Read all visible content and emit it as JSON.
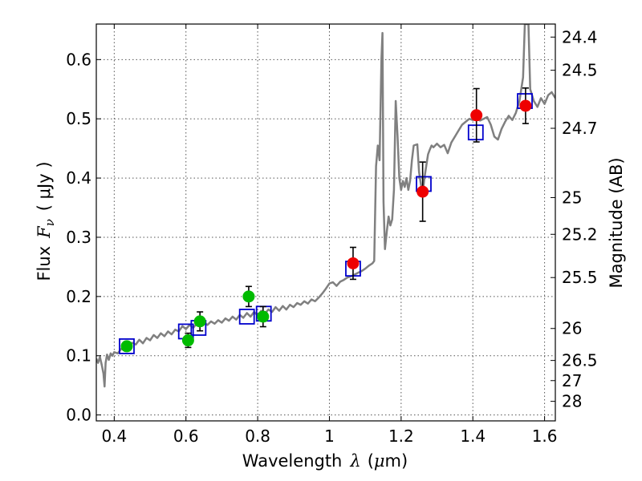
{
  "chart_data": {
    "type": "scatter",
    "title": "",
    "xlabel": {
      "prefix": "Wavelength",
      "symbol": "λ",
      "units_open": "(",
      "units_mu": "μ",
      "units_rest": "m)"
    },
    "ylabel": {
      "prefix": "Flux",
      "symbol": "F",
      "subscript": "ν",
      "units": "( μJy )"
    },
    "y2label": "Magnitude (AB)",
    "xlim": [
      0.35,
      1.63
    ],
    "ylim": [
      -0.01,
      0.66
    ],
    "grid": true,
    "x_ticks": [
      0.4,
      0.6,
      0.8,
      1.0,
      1.2,
      1.4,
      1.6
    ],
    "x_tick_labels": [
      "0.4",
      "0.6",
      "0.8",
      "1",
      "1.2",
      "1.4",
      "1.6"
    ],
    "y_ticks": [
      0.0,
      0.1,
      0.2,
      0.3,
      0.4,
      0.5,
      0.6
    ],
    "y_tick_labels": [
      "0.0",
      "0.1",
      "0.2",
      "0.3",
      "0.4",
      "0.5",
      "0.6"
    ],
    "y2_ticks": [
      {
        "label": "24.4",
        "flux": 0.638
      },
      {
        "label": "24.5",
        "flux": 0.582
      },
      {
        "label": "24.7",
        "flux": 0.484
      },
      {
        "label": "25",
        "flux": 0.367
      },
      {
        "label": "25.2",
        "flux": 0.305
      },
      {
        "label": "25.5",
        "flux": 0.232
      },
      {
        "label": "26",
        "flux": 0.146
      },
      {
        "label": "26.5",
        "flux": 0.092
      },
      {
        "label": "27",
        "flux": 0.058
      },
      {
        "label": "28",
        "flux": 0.023
      }
    ],
    "colors": {
      "model_spectrum": "#808080",
      "model_photometry": "#0000cc",
      "optical_photometry": "#00bb00",
      "nir_photometry": "#ee0000",
      "errorbar": "#000000",
      "grid": "#555555"
    },
    "series": [
      {
        "kind": "line",
        "points": [
          [
            0.35,
            0.095
          ],
          [
            0.355,
            0.088
          ],
          [
            0.36,
            0.098
          ],
          [
            0.365,
            0.085
          ],
          [
            0.37,
            0.07
          ],
          [
            0.373,
            0.048
          ],
          [
            0.376,
            0.088
          ],
          [
            0.38,
            0.102
          ],
          [
            0.385,
            0.093
          ],
          [
            0.39,
            0.104
          ],
          [
            0.395,
            0.1
          ],
          [
            0.4,
            0.106
          ],
          [
            0.41,
            0.104
          ],
          [
            0.42,
            0.112
          ],
          [
            0.43,
            0.108
          ],
          [
            0.44,
            0.115
          ],
          [
            0.45,
            0.122
          ],
          [
            0.46,
            0.119
          ],
          [
            0.47,
            0.127
          ],
          [
            0.48,
            0.121
          ],
          [
            0.49,
            0.13
          ],
          [
            0.5,
            0.126
          ],
          [
            0.51,
            0.135
          ],
          [
            0.52,
            0.13
          ],
          [
            0.53,
            0.138
          ],
          [
            0.54,
            0.133
          ],
          [
            0.55,
            0.141
          ],
          [
            0.56,
            0.136
          ],
          [
            0.57,
            0.144
          ],
          [
            0.58,
            0.141
          ],
          [
            0.59,
            0.15
          ],
          [
            0.6,
            0.145
          ],
          [
            0.61,
            0.152
          ],
          [
            0.62,
            0.147
          ],
          [
            0.63,
            0.154
          ],
          [
            0.64,
            0.151
          ],
          [
            0.65,
            0.156
          ],
          [
            0.66,
            0.152
          ],
          [
            0.67,
            0.158
          ],
          [
            0.68,
            0.154
          ],
          [
            0.69,
            0.16
          ],
          [
            0.7,
            0.156
          ],
          [
            0.71,
            0.163
          ],
          [
            0.72,
            0.159
          ],
          [
            0.73,
            0.166
          ],
          [
            0.74,
            0.161
          ],
          [
            0.75,
            0.169
          ],
          [
            0.76,
            0.164
          ],
          [
            0.77,
            0.172
          ],
          [
            0.78,
            0.166
          ],
          [
            0.79,
            0.174
          ],
          [
            0.8,
            0.168
          ],
          [
            0.81,
            0.176
          ],
          [
            0.82,
            0.171
          ],
          [
            0.83,
            0.178
          ],
          [
            0.84,
            0.174
          ],
          [
            0.85,
            0.182
          ],
          [
            0.86,
            0.176
          ],
          [
            0.87,
            0.184
          ],
          [
            0.88,
            0.178
          ],
          [
            0.89,
            0.186
          ],
          [
            0.9,
            0.182
          ],
          [
            0.91,
            0.189
          ],
          [
            0.92,
            0.186
          ],
          [
            0.93,
            0.192
          ],
          [
            0.94,
            0.188
          ],
          [
            0.95,
            0.195
          ],
          [
            0.96,
            0.192
          ],
          [
            0.97,
            0.198
          ],
          [
            0.98,
            0.205
          ],
          [
            0.99,
            0.213
          ],
          [
            1.0,
            0.222
          ],
          [
            1.01,
            0.224
          ],
          [
            1.02,
            0.218
          ],
          [
            1.03,
            0.225
          ],
          [
            1.04,
            0.228
          ],
          [
            1.05,
            0.232
          ],
          [
            1.06,
            0.234
          ],
          [
            1.07,
            0.237
          ],
          [
            1.08,
            0.24
          ],
          [
            1.09,
            0.243
          ],
          [
            1.1,
            0.247
          ],
          [
            1.11,
            0.252
          ],
          [
            1.12,
            0.256
          ],
          [
            1.125,
            0.26
          ],
          [
            1.13,
            0.42
          ],
          [
            1.135,
            0.455
          ],
          [
            1.14,
            0.43
          ],
          [
            1.145,
            0.6
          ],
          [
            1.148,
            0.645
          ],
          [
            1.151,
            0.36
          ],
          [
            1.155,
            0.28
          ],
          [
            1.16,
            0.31
          ],
          [
            1.165,
            0.335
          ],
          [
            1.17,
            0.32
          ],
          [
            1.175,
            0.33
          ],
          [
            1.18,
            0.38
          ],
          [
            1.185,
            0.53
          ],
          [
            1.19,
            0.47
          ],
          [
            1.195,
            0.4
          ],
          [
            1.2,
            0.38
          ],
          [
            1.205,
            0.395
          ],
          [
            1.21,
            0.385
          ],
          [
            1.215,
            0.4
          ],
          [
            1.22,
            0.38
          ],
          [
            1.225,
            0.395
          ],
          [
            1.23,
            0.43
          ],
          [
            1.235,
            0.455
          ],
          [
            1.245,
            0.457
          ],
          [
            1.25,
            0.41
          ],
          [
            1.255,
            0.39
          ],
          [
            1.26,
            0.375
          ],
          [
            1.265,
            0.4
          ],
          [
            1.27,
            0.42
          ],
          [
            1.275,
            0.44
          ],
          [
            1.28,
            0.448
          ],
          [
            1.285,
            0.455
          ],
          [
            1.29,
            0.452
          ],
          [
            1.3,
            0.458
          ],
          [
            1.31,
            0.452
          ],
          [
            1.32,
            0.456
          ],
          [
            1.33,
            0.442
          ],
          [
            1.34,
            0.46
          ],
          [
            1.35,
            0.47
          ],
          [
            1.36,
            0.48
          ],
          [
            1.37,
            0.49
          ],
          [
            1.38,
            0.495
          ],
          [
            1.39,
            0.5
          ],
          [
            1.4,
            0.498
          ],
          [
            1.41,
            0.5
          ],
          [
            1.42,
            0.497
          ],
          [
            1.43,
            0.5
          ],
          [
            1.44,
            0.503
          ],
          [
            1.45,
            0.49
          ],
          [
            1.46,
            0.47
          ],
          [
            1.47,
            0.465
          ],
          [
            1.48,
            0.483
          ],
          [
            1.49,
            0.495
          ],
          [
            1.5,
            0.505
          ],
          [
            1.51,
            0.498
          ],
          [
            1.52,
            0.51
          ],
          [
            1.53,
            0.53
          ],
          [
            1.54,
            0.57
          ],
          [
            1.545,
            0.66
          ],
          [
            1.555,
            0.66
          ],
          [
            1.56,
            0.55
          ],
          [
            1.57,
            0.53
          ],
          [
            1.58,
            0.52
          ],
          [
            1.59,
            0.535
          ],
          [
            1.6,
            0.525
          ],
          [
            1.61,
            0.54
          ],
          [
            1.62,
            0.545
          ],
          [
            1.63,
            0.535
          ]
        ]
      },
      {
        "kind": "open-squares",
        "points": [
          [
            0.435,
            0.116
          ],
          [
            0.6,
            0.141
          ],
          [
            0.635,
            0.147
          ],
          [
            0.77,
            0.166
          ],
          [
            0.817,
            0.171
          ],
          [
            1.066,
            0.247
          ],
          [
            1.263,
            0.39
          ],
          [
            1.408,
            0.477
          ],
          [
            1.545,
            0.53
          ]
        ]
      },
      {
        "kind": "points-with-errorbars",
        "color_key": "optical_photometry",
        "points": [
          {
            "x": 0.435,
            "y": 0.116,
            "err": 0.0
          },
          {
            "x": 0.606,
            "y": 0.126,
            "err": 0.012
          },
          {
            "x": 0.639,
            "y": 0.158,
            "err": 0.016
          },
          {
            "x": 0.775,
            "y": 0.2,
            "err": 0.017
          },
          {
            "x": 0.815,
            "y": 0.166,
            "err": 0.017
          }
        ]
      },
      {
        "kind": "points-with-errorbars",
        "color_key": "nir_photometry",
        "points": [
          {
            "x": 1.066,
            "y": 0.256,
            "err": 0.027
          },
          {
            "x": 1.26,
            "y": 0.377,
            "err": 0.05
          },
          {
            "x": 1.41,
            "y": 0.506,
            "err": 0.045
          },
          {
            "x": 1.547,
            "y": 0.522,
            "err": 0.03
          }
        ]
      }
    ]
  }
}
